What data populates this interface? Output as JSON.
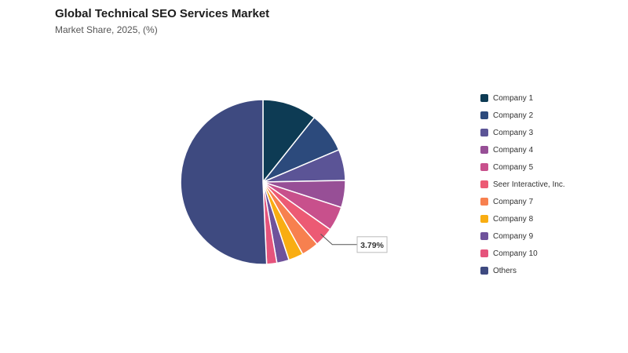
{
  "header": {
    "title": "Global Technical SEO Services Market",
    "subtitle": "Market Share, 2025, (%)"
  },
  "chart_data": {
    "type": "pie",
    "title": "Global Technical SEO Services Market",
    "subtitle": "Market Share, 2025, (%)",
    "legend_position": "right",
    "start_angle_deg": 0,
    "direction": "clockwise",
    "slices": [
      {
        "label": "Company 1",
        "value": 10.7,
        "color": "#0d3b54"
      },
      {
        "label": "Company 2",
        "value": 7.9,
        "color": "#2c4a7c"
      },
      {
        "label": "Company 3",
        "value": 6.1,
        "color": "#5b5496"
      },
      {
        "label": "Company 4",
        "value": 5.3,
        "color": "#974f96"
      },
      {
        "label": "Company 5",
        "value": 4.8,
        "color": "#c8508c"
      },
      {
        "label": "Seer Interactive, Inc.",
        "value": 3.79,
        "color": "#ec5a74"
      },
      {
        "label": "Company 7",
        "value": 3.4,
        "color": "#f7804f"
      },
      {
        "label": "Company 8",
        "value": 2.9,
        "color": "#f9ad12"
      },
      {
        "label": "Company 9",
        "value": 2.4,
        "color": "#6f529b"
      },
      {
        "label": "Company 10",
        "value": 2.0,
        "color": "#e5547c"
      },
      {
        "label": "Others",
        "value": 50.71,
        "color": "#3e4a80"
      }
    ],
    "data_labels": [
      {
        "slice": "Seer Interactive, Inc.",
        "text": "3.79%"
      }
    ]
  }
}
